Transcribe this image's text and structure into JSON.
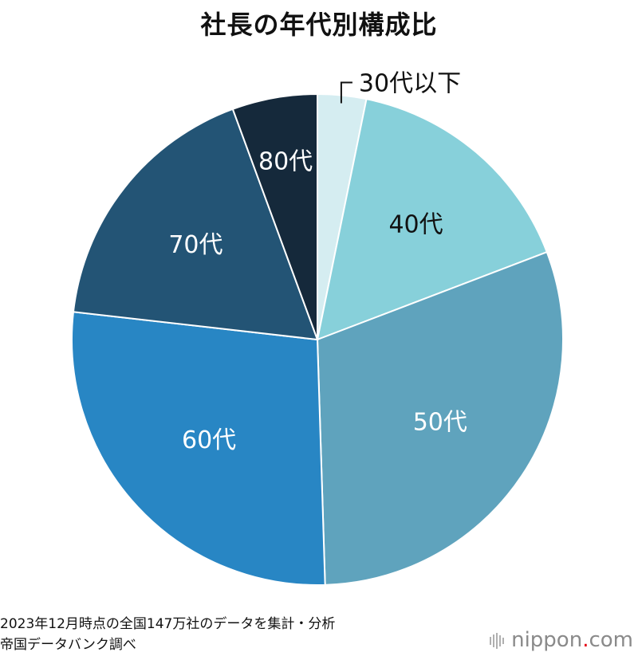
{
  "chart_data": {
    "type": "pie",
    "title": "社長の年代別構成比",
    "categories": [
      "30代以下",
      "40代",
      "50代",
      "60代",
      "70代",
      "80代"
    ],
    "values": [
      3.2,
      16.0,
      30.3,
      27.3,
      17.6,
      5.6
    ],
    "colors": [
      "#d5edf1",
      "#87d0da",
      "#5fa3bd",
      "#2886c4",
      "#235475",
      "#15293b"
    ],
    "label_colors": [
      "#111111",
      "#111111",
      "#ffffff",
      "#ffffff",
      "#ffffff",
      "#ffffff"
    ],
    "start_angle_deg": 0,
    "direction": "clockwise",
    "legend": "none"
  },
  "footnotes": {
    "line1": "2023年12月時点の全国147万社のデータを集計・分析",
    "line2": "帝国データバンク調べ"
  },
  "brand": {
    "name": "nippon",
    "dot": ".",
    "suffix": "com"
  }
}
